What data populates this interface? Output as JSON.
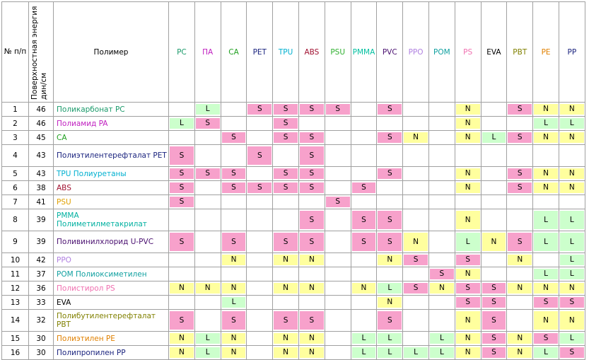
{
  "header": {
    "num": "№ п/п",
    "energy": "Поверхностная энергия дин/см",
    "polymer": "Полимер",
    "columns": [
      {
        "name": "PC",
        "color": "#1a9a6a"
      },
      {
        "name": "ПА",
        "color": "#c020c0"
      },
      {
        "name": "CA",
        "color": "#20a020"
      },
      {
        "name": "PET",
        "color": "#1a237e"
      },
      {
        "name": "TPU",
        "color": "#00b0d0"
      },
      {
        "name": "ABS",
        "color": "#a01030"
      },
      {
        "name": "PSU",
        "color": "#30b030"
      },
      {
        "name": "PMMA",
        "color": "#00c0a0"
      },
      {
        "name": "PVC",
        "color": "#4a1070"
      },
      {
        "name": "PPO",
        "color": "#b080e0"
      },
      {
        "name": "POM",
        "color": "#10a0a0"
      },
      {
        "name": "PS",
        "color": "#f070b0"
      },
      {
        "name": "EVA",
        "color": "#000000"
      },
      {
        "name": "PBT",
        "color": "#808000"
      },
      {
        "name": "PE",
        "color": "#e08000"
      },
      {
        "name": "PP",
        "color": "#1a237e"
      }
    ]
  },
  "cell_colors": {
    "S": "#f7a1cb",
    "N": "#ffff9e",
    "L": "#ccffcc"
  },
  "rows": [
    {
      "num": "1",
      "energy": "46",
      "name": "Поликарбонат PC",
      "color": "#1a9a6a",
      "cells": [
        null,
        "L",
        null,
        "S",
        "S",
        "S",
        "S",
        null,
        "S",
        null,
        null,
        "N",
        null,
        "S",
        "N",
        "N"
      ]
    },
    {
      "num": "2",
      "energy": "46",
      "name": "Полиамид PA",
      "color": "#c020c0",
      "cells": [
        "L",
        "S",
        null,
        null,
        "S",
        null,
        null,
        null,
        null,
        null,
        null,
        "N",
        null,
        null,
        "L",
        "L"
      ]
    },
    {
      "num": "3",
      "energy": "45",
      "name": "CA",
      "color": "#20a020",
      "cells": [
        null,
        null,
        "S",
        null,
        "S",
        "S",
        null,
        null,
        "S",
        "N",
        null,
        "N",
        "L",
        "S",
        "N",
        "N"
      ]
    },
    {
      "num": "4",
      "energy": "43",
      "name": "Полиэтилентерефталат PET",
      "color": "#1a237e",
      "cells": [
        "S",
        null,
        null,
        "S",
        null,
        "S",
        null,
        null,
        null,
        null,
        null,
        null,
        null,
        null,
        null,
        null
      ]
    },
    {
      "num": "5",
      "energy": "43",
      "name": "TPU Полиуретаны",
      "color": "#00b0d0",
      "cells": [
        "S",
        "S",
        "S",
        null,
        "S",
        "S",
        null,
        null,
        "S",
        null,
        null,
        "N",
        null,
        "S",
        "N",
        "N"
      ]
    },
    {
      "num": "6",
      "energy": "38",
      "name": "ABS",
      "color": "#a01030",
      "cells": [
        "S",
        null,
        "S",
        "S",
        "S",
        "S",
        null,
        "S",
        null,
        null,
        null,
        "N",
        null,
        "S",
        "N",
        "N"
      ]
    },
    {
      "num": "7",
      "energy": "41",
      "name": "PSU",
      "color": "#e0a000",
      "cells": [
        "S",
        null,
        null,
        null,
        null,
        null,
        "S",
        null,
        null,
        null,
        null,
        null,
        null,
        null,
        null,
        null
      ]
    },
    {
      "num": "8",
      "energy": "39",
      "name": "PMMA Полиметилметакрилат",
      "color": "#00b0a0",
      "cells": [
        null,
        null,
        null,
        null,
        null,
        "S",
        null,
        "S",
        "S",
        null,
        null,
        "N",
        null,
        null,
        "L",
        "L"
      ]
    },
    {
      "num": "9",
      "energy": "39",
      "name": "Поливинилхлорид U-PVC",
      "color": "#4a1070",
      "cells": [
        "S",
        null,
        "S",
        null,
        "S",
        "S",
        null,
        "S",
        "S",
        "N",
        null,
        "L",
        "N",
        "S",
        "L",
        "L"
      ]
    },
    {
      "num": "10",
      "energy": "42",
      "name": "PPO",
      "color": "#b080e0",
      "cells": [
        null,
        null,
        "N",
        null,
        "N",
        "N",
        null,
        null,
        "N",
        "S",
        null,
        "S",
        null,
        "N",
        null,
        "L"
      ]
    },
    {
      "num": "11",
      "energy": "37",
      "name": "POM Полиоксиметилен",
      "color": "#10a0a0",
      "cells": [
        null,
        null,
        null,
        null,
        null,
        null,
        null,
        null,
        null,
        null,
        "S",
        "N",
        null,
        null,
        "L",
        "L"
      ]
    },
    {
      "num": "12",
      "energy": "36",
      "name": "Полистирол PS",
      "color": "#f070b0",
      "cells": [
        "N",
        "N",
        "N",
        null,
        "N",
        "N",
        null,
        "N",
        "L",
        "S",
        "N",
        "S",
        "S",
        "N",
        "N",
        "N"
      ]
    },
    {
      "num": "13",
      "energy": "33",
      "name": "EVA",
      "color": "#000000",
      "cells": [
        null,
        null,
        "L",
        null,
        null,
        null,
        null,
        null,
        "N",
        null,
        null,
        "S",
        "S",
        null,
        "S",
        "S"
      ]
    },
    {
      "num": "14",
      "energy": "32",
      "name": "Полибутилентерефталат PBT",
      "color": "#808000",
      "cells": [
        "S",
        null,
        "S",
        null,
        "S",
        "S",
        null,
        null,
        "S",
        null,
        null,
        "N",
        "S",
        null,
        "N",
        "N"
      ]
    },
    {
      "num": "15",
      "energy": "30",
      "name": "Полиэтилен PE",
      "color": "#e08000",
      "cells": [
        "N",
        "L",
        "N",
        null,
        "N",
        "N",
        null,
        "L",
        "L",
        null,
        "L",
        "N",
        "S",
        "N",
        "S",
        "L"
      ]
    },
    {
      "num": "16",
      "energy": "30",
      "name": "Полипропилен PP",
      "color": "#1a237e",
      "cells": [
        "N",
        "L",
        "N",
        null,
        "N",
        "N",
        null,
        "L",
        "L",
        "L",
        "L",
        "N",
        "S",
        "N",
        "L",
        "S"
      ]
    }
  ]
}
